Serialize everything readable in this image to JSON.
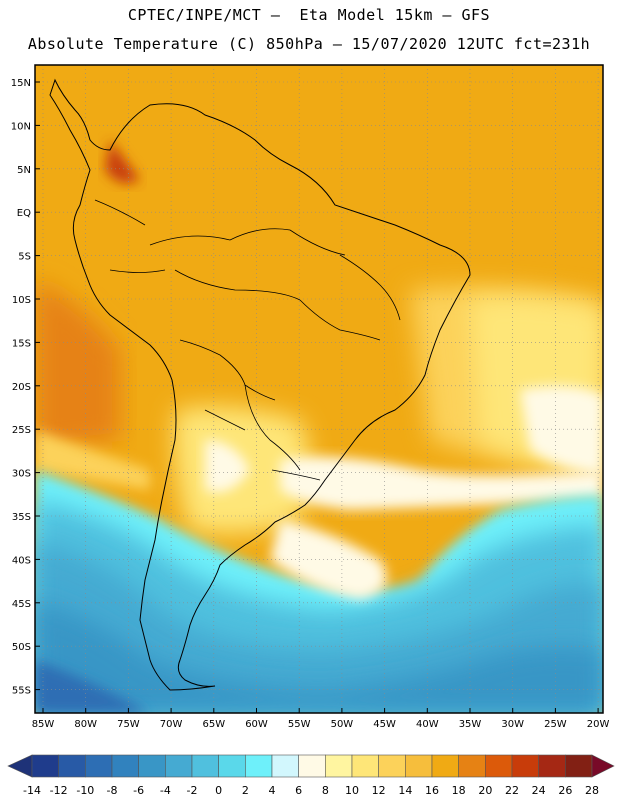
{
  "header": {
    "line1": "CPTEC/INPE/MCT —  Eta Model 15km — GFS",
    "line2": "Absolute Temperature (C) 850hPa — 15/07/2020 12UTC fct=231h"
  },
  "map": {
    "lat_labels": [
      "15N",
      "10N",
      "5N",
      "EQ",
      "5S",
      "10S",
      "15S",
      "20S",
      "25S",
      "30S",
      "35S",
      "40S",
      "45S",
      "50S",
      "55S"
    ],
    "lon_labels": [
      "85W",
      "80W",
      "75W",
      "70W",
      "65W",
      "60W",
      "55W",
      "50W",
      "45W",
      "40W",
      "35W",
      "30W",
      "25W",
      "20W"
    ]
  },
  "colorbar": {
    "labels": [
      "-14",
      "-12",
      "-10",
      "-8",
      "-6",
      "-4",
      "-2",
      "0",
      "2",
      "4",
      "6",
      "8",
      "10",
      "12",
      "14",
      "16",
      "18",
      "20",
      "22",
      "24",
      "26",
      "28"
    ],
    "colors": [
      "#1f3c8c",
      "#285aa6",
      "#2d6eb4",
      "#3182be",
      "#3996c6",
      "#45aad2",
      "#50c0de",
      "#5ad8ea",
      "#6ef0fa",
      "#d2f7fd",
      "#fffae6",
      "#fff5a0",
      "#fee678",
      "#fcd25a",
      "#f6be3c",
      "#f0aa14",
      "#e68214",
      "#dc5a0a",
      "#c83c0a",
      "#a52814",
      "#822014"
    ],
    "low_color": "#1e3278",
    "high_color": "#780a28"
  }
}
